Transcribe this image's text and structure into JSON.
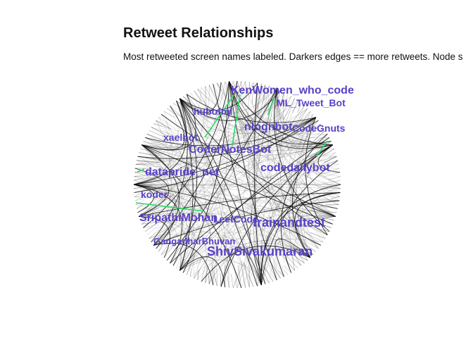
{
  "title": "Retweet Relationships",
  "subtitle": "Most retweeted screen names labeled. Darkers edges == more retweets. Node s",
  "colors": {
    "label": "#5a40c8",
    "highlight_edge": "#22dd66",
    "edge": "#000000"
  },
  "graph": {
    "layout": "circle",
    "labels": [
      {
        "text": "KenWomen_who_code",
        "size": "large"
      },
      {
        "text": "ML_Tweet_Bot",
        "size": "medium"
      },
      {
        "text": "hubofml",
        "size": "medium"
      },
      {
        "text": "nlognbot",
        "size": "large"
      },
      {
        "text": "CodeGnuts",
        "size": "medium"
      },
      {
        "text": "xaelbot",
        "size": "medium"
      },
      {
        "text": "CoderNotesBot",
        "size": "large"
      },
      {
        "text": "codedailybot",
        "size": "large"
      },
      {
        "text": "datapride_net",
        "size": "large"
      },
      {
        "text": "koder",
        "size": "medium"
      },
      {
        "text": "SripathiMohan",
        "size": "large"
      },
      {
        "text": "LeetCode",
        "size": "medium"
      },
      {
        "text": "trainandtest",
        "size": "xlarge"
      },
      {
        "text": "GangadharBhuvan",
        "size": "small"
      },
      {
        "text": "ShivSivakumaran",
        "size": "xlarge"
      }
    ]
  }
}
